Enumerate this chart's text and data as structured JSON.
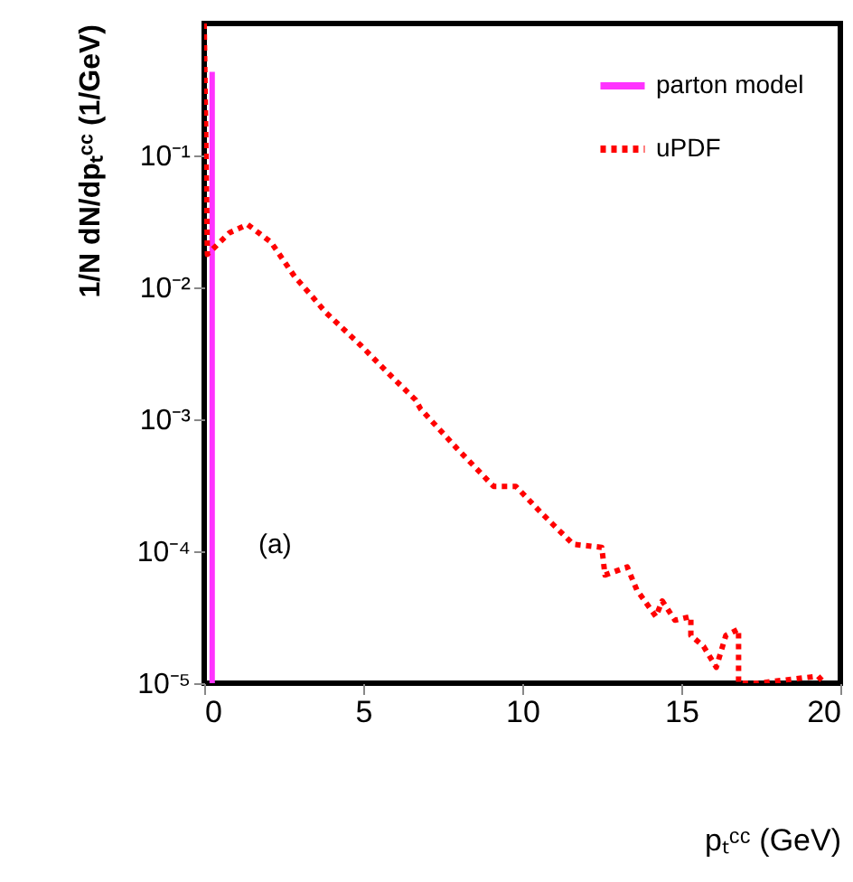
{
  "chart_data": {
    "type": "line",
    "xlabel": "pₜᶜᶜ (GeV)",
    "ylabel": "1/N dN/dpₜᶜᶜ (1/GeV)",
    "annotations": [
      "(a)"
    ],
    "xlim": [
      0,
      20
    ],
    "xticks": [
      0,
      5,
      10,
      15,
      20
    ],
    "ylim": [
      1e-05,
      1
    ],
    "log": "y",
    "yticks": [
      {
        "value": 1e-05,
        "label": "10⁻⁵"
      },
      {
        "value": 0.0001,
        "label": "10⁻⁴"
      },
      {
        "value": 0.001,
        "label": "10⁻³"
      },
      {
        "value": 0.01,
        "label": "10⁻²"
      },
      {
        "value": 0.1,
        "label": "10⁻¹"
      }
    ],
    "grid": false,
    "legend": "top right",
    "marker": "none",
    "series": [
      {
        "name": "parton model",
        "color": "#ff33ff",
        "line_style": "solid",
        "x": [
          0.25,
          0.25
        ],
        "values": [
          0.43,
          1e-05
        ]
      },
      {
        "name": "uPDF",
        "color": "#ff0000",
        "line_style": "dotted",
        "x": [
          0,
          0.1,
          0.8,
          1.36,
          2.1,
          2.84,
          3.4,
          3.81,
          4.94,
          5.9,
          6.65,
          6.8,
          7.95,
          9.1,
          9.8,
          10.6,
          11.6,
          12.5,
          12.6,
          13.3,
          13.6,
          14.2,
          14.4,
          14.8,
          15.3,
          15.3,
          15.7,
          16.1,
          16.4,
          16.8,
          16.8,
          16.8,
          17.4,
          19.3,
          19.5
        ],
        "values": [
          1,
          0.0178,
          0.026,
          0.03,
          0.022,
          0.0121,
          0.0085,
          0.0065,
          0.0036,
          0.0021,
          0.0014,
          0.0012,
          0.0006,
          0.00031,
          0.00031,
          0.000195,
          0.000113,
          0.000107,
          6.6e-05,
          7.6e-05,
          5.1e-05,
          3.2e-05,
          4.2e-05,
          3e-05,
          3.2e-05,
          2.3e-05,
          1.9e-05,
          1.32e-05,
          2.3e-05,
          2.57e-05,
          1.25e-05,
          1e-05,
          1e-05,
          1.13e-05,
          1e-05
        ]
      }
    ]
  }
}
